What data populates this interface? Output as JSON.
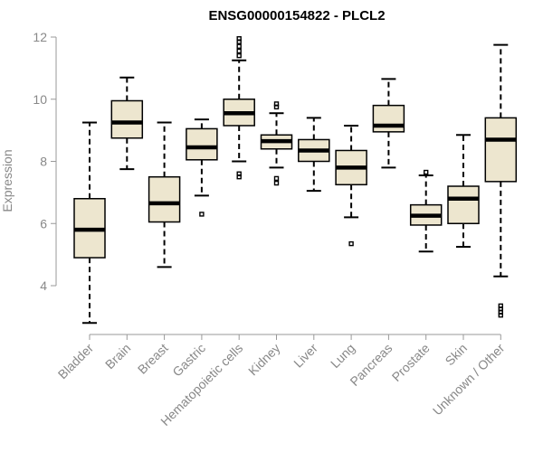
{
  "chart_data": {
    "type": "boxplot",
    "title": "ENSG00000154822 - PLCL2",
    "xlabel": "",
    "ylabel": "Expression",
    "ylim": [
      2.5,
      12.2
    ],
    "yticks": [
      4,
      6,
      8,
      10,
      12
    ],
    "box_fill": "#EDE6CF",
    "categories": [
      "Bladder",
      "Brain",
      "Breast",
      "Gastric",
      "Hematopoietic cells",
      "Kidney",
      "Liver",
      "Lung",
      "Pancreas",
      "Prostate",
      "Skin",
      "Unknown / Other"
    ],
    "boxes": [
      {
        "min": 2.8,
        "q1": 4.9,
        "median": 5.8,
        "q3": 6.8,
        "max": 9.25,
        "outliers": []
      },
      {
        "min": 7.75,
        "q1": 8.75,
        "median": 9.25,
        "q3": 9.95,
        "max": 10.7,
        "outliers": []
      },
      {
        "min": 4.6,
        "q1": 6.05,
        "median": 6.65,
        "q3": 7.5,
        "max": 9.25,
        "outliers": []
      },
      {
        "min": 6.9,
        "q1": 8.05,
        "median": 8.45,
        "q3": 9.05,
        "max": 9.35,
        "outliers": [
          6.3
        ]
      },
      {
        "min": 8.0,
        "q1": 9.15,
        "median": 9.55,
        "q3": 10.0,
        "max": 11.25,
        "outliers": [
          7.5,
          7.6,
          11.4,
          11.55,
          11.7,
          11.85,
          11.95
        ]
      },
      {
        "min": 7.8,
        "q1": 8.4,
        "median": 8.65,
        "q3": 8.85,
        "max": 9.55,
        "outliers": [
          7.3,
          7.45,
          9.75,
          9.85
        ]
      },
      {
        "min": 7.05,
        "q1": 8.0,
        "median": 8.35,
        "q3": 8.7,
        "max": 9.4,
        "outliers": []
      },
      {
        "min": 6.2,
        "q1": 7.25,
        "median": 7.8,
        "q3": 8.35,
        "max": 9.15,
        "outliers": [
          5.35
        ]
      },
      {
        "min": 7.8,
        "q1": 8.95,
        "median": 9.15,
        "q3": 9.8,
        "max": 10.65,
        "outliers": []
      },
      {
        "min": 5.1,
        "q1": 5.95,
        "median": 6.25,
        "q3": 6.6,
        "max": 7.55,
        "outliers": [
          7.65
        ]
      },
      {
        "min": 5.25,
        "q1": 6.0,
        "median": 6.8,
        "q3": 7.2,
        "max": 8.85,
        "outliers": []
      },
      {
        "min": 4.3,
        "q1": 7.35,
        "median": 8.7,
        "q3": 9.4,
        "max": 11.75,
        "outliers": [
          3.05,
          3.15,
          3.25,
          3.35
        ]
      }
    ]
  }
}
